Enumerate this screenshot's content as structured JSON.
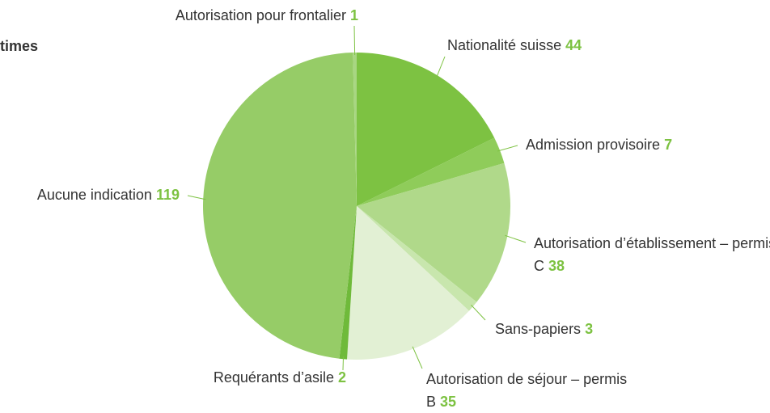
{
  "chart_data": {
    "type": "pie",
    "title": "times",
    "categories": [
      "Nationalité suisse",
      "Admission provisoire",
      "Autorisation d’établissement – permis C",
      "Sans-papiers",
      "Autorisation de séjour – permis B",
      "Requérants d’asile",
      "Aucune indication",
      "Autorisation pour frontalier"
    ],
    "values": [
      44,
      7,
      38,
      3,
      35,
      2,
      119,
      1
    ],
    "colors": [
      "#7dc242",
      "#8fcc5a",
      "#b0d98a",
      "#c8e6ad",
      "#e2f0d4",
      "#6fba3a",
      "#96cc67",
      "#a8d682"
    ]
  }
}
